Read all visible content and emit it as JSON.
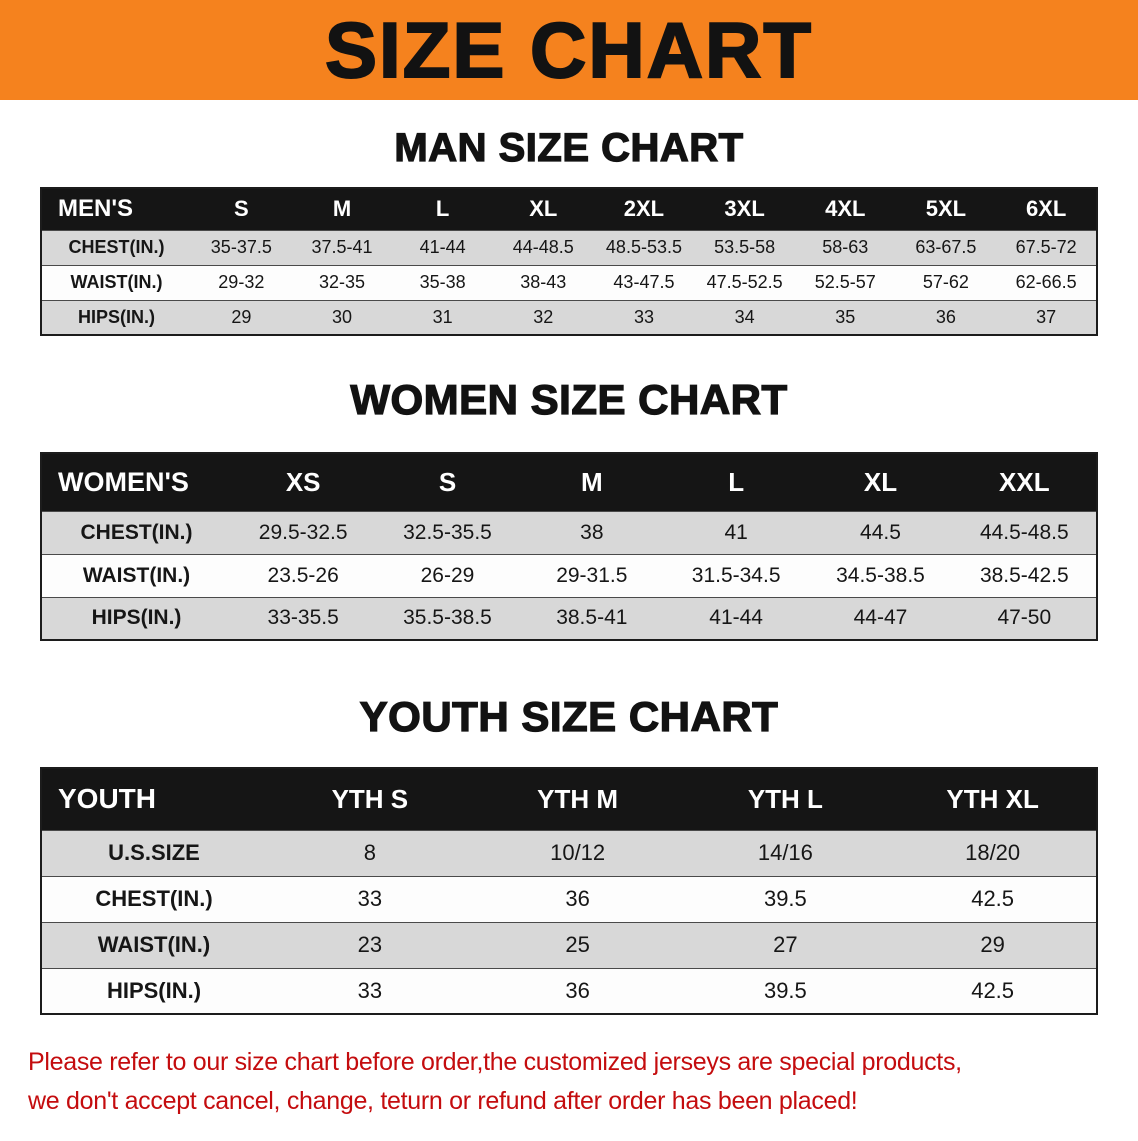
{
  "banner": {
    "title": "SIZE CHART",
    "bg_color": "#F5821E",
    "text_color": "#121212"
  },
  "man_section": {
    "heading": "MAN SIZE CHART",
    "table": {
      "header": [
        "MEN'S",
        "S",
        "M",
        "L",
        "XL",
        "2XL",
        "3XL",
        "4XL",
        "5XL",
        "6XL"
      ],
      "rows": [
        [
          "CHEST(IN.)",
          "35-37.5",
          "37.5-41",
          "41-44",
          "44-48.5",
          "48.5-53.5",
          "53.5-58",
          "58-63",
          "63-67.5",
          "67.5-72"
        ],
        [
          "WAIST(IN.)",
          "29-32",
          "32-35",
          "35-38",
          "38-43",
          "43-47.5",
          "47.5-52.5",
          "52.5-57",
          "57-62",
          "62-66.5"
        ],
        [
          "HIPS(IN.)",
          "29",
          "30",
          "31",
          "32",
          "33",
          "34",
          "35",
          "36",
          "37"
        ]
      ]
    }
  },
  "women_section": {
    "heading": "WOMEN SIZE CHART",
    "table": {
      "header": [
        "WOMEN'S",
        "XS",
        "S",
        "M",
        "L",
        "XL",
        "XXL"
      ],
      "rows": [
        [
          "CHEST(IN.)",
          "29.5-32.5",
          "32.5-35.5",
          "38",
          "41",
          "44.5",
          "44.5-48.5"
        ],
        [
          "WAIST(IN.)",
          "23.5-26",
          "26-29",
          "29-31.5",
          "31.5-34.5",
          "34.5-38.5",
          "38.5-42.5"
        ],
        [
          "HIPS(IN.)",
          "33-35.5",
          "35.5-38.5",
          "38.5-41",
          "41-44",
          "44-47",
          "47-50"
        ]
      ]
    }
  },
  "youth_section": {
    "heading": "YOUTH SIZE CHART",
    "table": {
      "header": [
        "YOUTH",
        "YTH S",
        "YTH M",
        "YTH L",
        "YTH XL"
      ],
      "rows": [
        [
          "U.S.SIZE",
          "8",
          "10/12",
          "14/16",
          "18/20"
        ],
        [
          "CHEST(IN.)",
          "33",
          "36",
          "39.5",
          "42.5"
        ],
        [
          "WAIST(IN.)",
          "23",
          "25",
          "27",
          "29"
        ],
        [
          "HIPS(IN.)",
          "33",
          "36",
          "39.5",
          "42.5"
        ]
      ]
    }
  },
  "footer": {
    "lines": [
      "Please refer to our size chart before order,the customized jerseys are special products,",
      "we don't accept cancel, change, teturn or refund after order has been placed!"
    ],
    "text_color": "#C40C0E"
  }
}
